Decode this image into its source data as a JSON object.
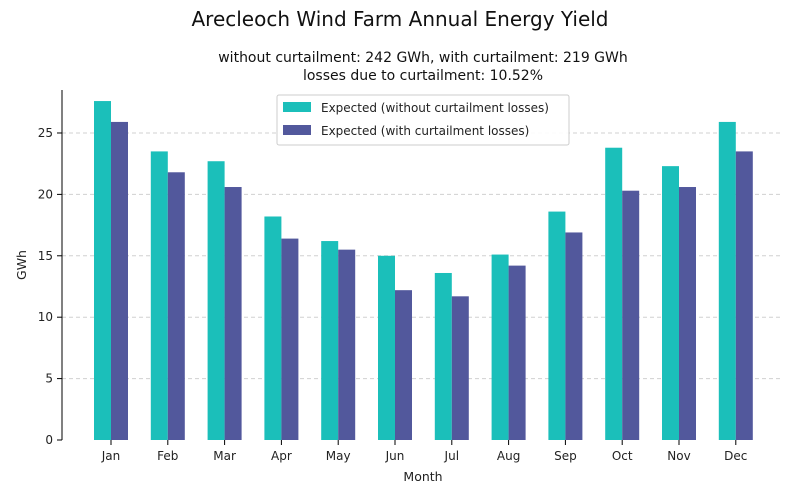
{
  "chart_data": {
    "type": "bar",
    "title": "Arecleoch Wind Farm Annual Energy Yield",
    "subtitle_line1": "without curtailment: 242 GWh, with curtailment: 219 GWh",
    "subtitle_line2": "losses due to curtailment: 10.52%",
    "xlabel": "Month",
    "ylabel": "GWh",
    "ylim": [
      0,
      28.5
    ],
    "yticks": [
      0,
      5,
      10,
      15,
      20,
      25
    ],
    "grid": "y-dashed",
    "legend_position": "top-center",
    "categories": [
      "Jan",
      "Feb",
      "Mar",
      "Apr",
      "May",
      "Jun",
      "Jul",
      "Aug",
      "Sep",
      "Oct",
      "Nov",
      "Dec"
    ],
    "series": [
      {
        "name": "Expected (without curtailment losses)",
        "color": "#1bbfba",
        "values": [
          27.6,
          23.5,
          22.7,
          18.2,
          16.2,
          15.0,
          13.6,
          15.1,
          18.6,
          23.8,
          22.3,
          25.9
        ]
      },
      {
        "name": "Expected (with curtailment losses)",
        "color": "#52589c",
        "values": [
          25.9,
          21.8,
          20.6,
          16.4,
          15.5,
          12.2,
          11.7,
          14.2,
          16.9,
          20.3,
          20.6,
          23.5
        ]
      }
    ]
  }
}
